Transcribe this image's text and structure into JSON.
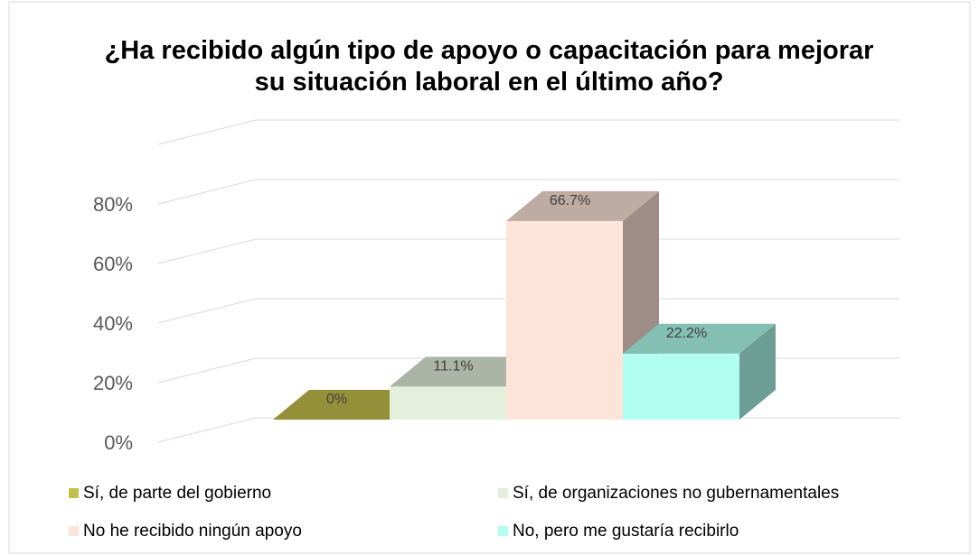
{
  "chart_data": {
    "type": "bar3d",
    "title": "¿Ha recibido algún tipo de apoyo o capacitación para mejorar su situación laboral en el último año?",
    "series": [
      {
        "name": "Sí, de parte del gobierno",
        "color": "#c4c04c",
        "values": [
          0
        ],
        "value_labels": [
          "0%"
        ]
      },
      {
        "name": "Sí, de organizaciones no gubernamentales",
        "color": "#e4f0dc",
        "values": [
          11.1
        ],
        "value_labels": [
          "11.1%"
        ]
      },
      {
        "name": "No he recibido ningún apoyo",
        "color": "#fde4d8",
        "values": [
          66.7
        ],
        "value_labels": [
          "66.7%"
        ]
      },
      {
        "name": "No, pero me gustaría recibirlo",
        "color": "#b0fff0",
        "values": [
          22.2
        ],
        "value_labels": [
          "22.2%"
        ]
      }
    ],
    "ylim": [
      0,
      100
    ],
    "yticks": [
      {
        "value": 0,
        "label": "0%"
      },
      {
        "value": 20,
        "label": "20%"
      },
      {
        "value": 40,
        "label": "40%"
      },
      {
        "value": 60,
        "label": "60%"
      },
      {
        "value": 80,
        "label": "80%"
      }
    ],
    "grid": true
  }
}
